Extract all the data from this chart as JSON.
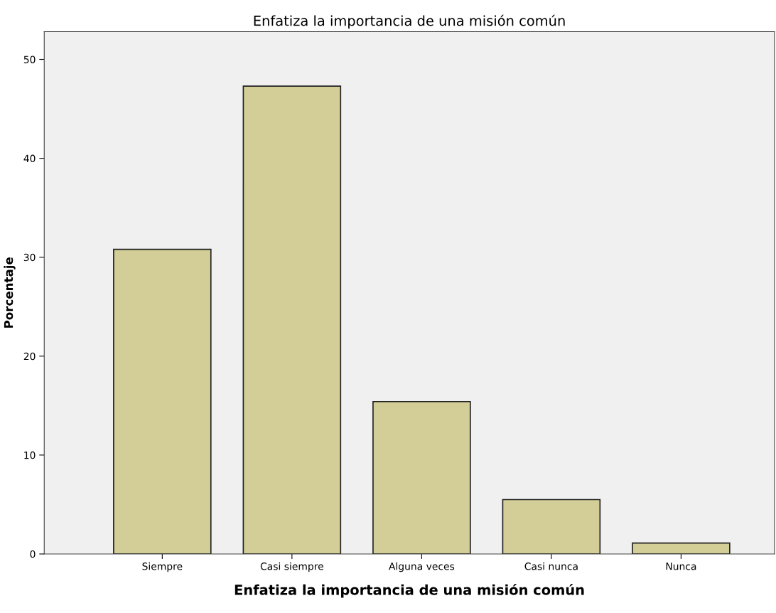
{
  "chart_data": {
    "type": "bar",
    "title": "Enfatiza la importancia de una misión común",
    "xlabel": "Enfatiza la importancia de una misión común",
    "ylabel": "Porcentaje",
    "categories": [
      "Siempre",
      "Casi siempre",
      "Alguna veces",
      "Casi nunca",
      "Nunca"
    ],
    "values": [
      30.8,
      47.3,
      15.4,
      5.5,
      1.1
    ],
    "color": "#d3ce97",
    "ylim": [
      0,
      52.8
    ],
    "yticks": [
      0,
      10,
      20,
      30,
      40,
      50
    ],
    "grid": false,
    "legend": false
  }
}
